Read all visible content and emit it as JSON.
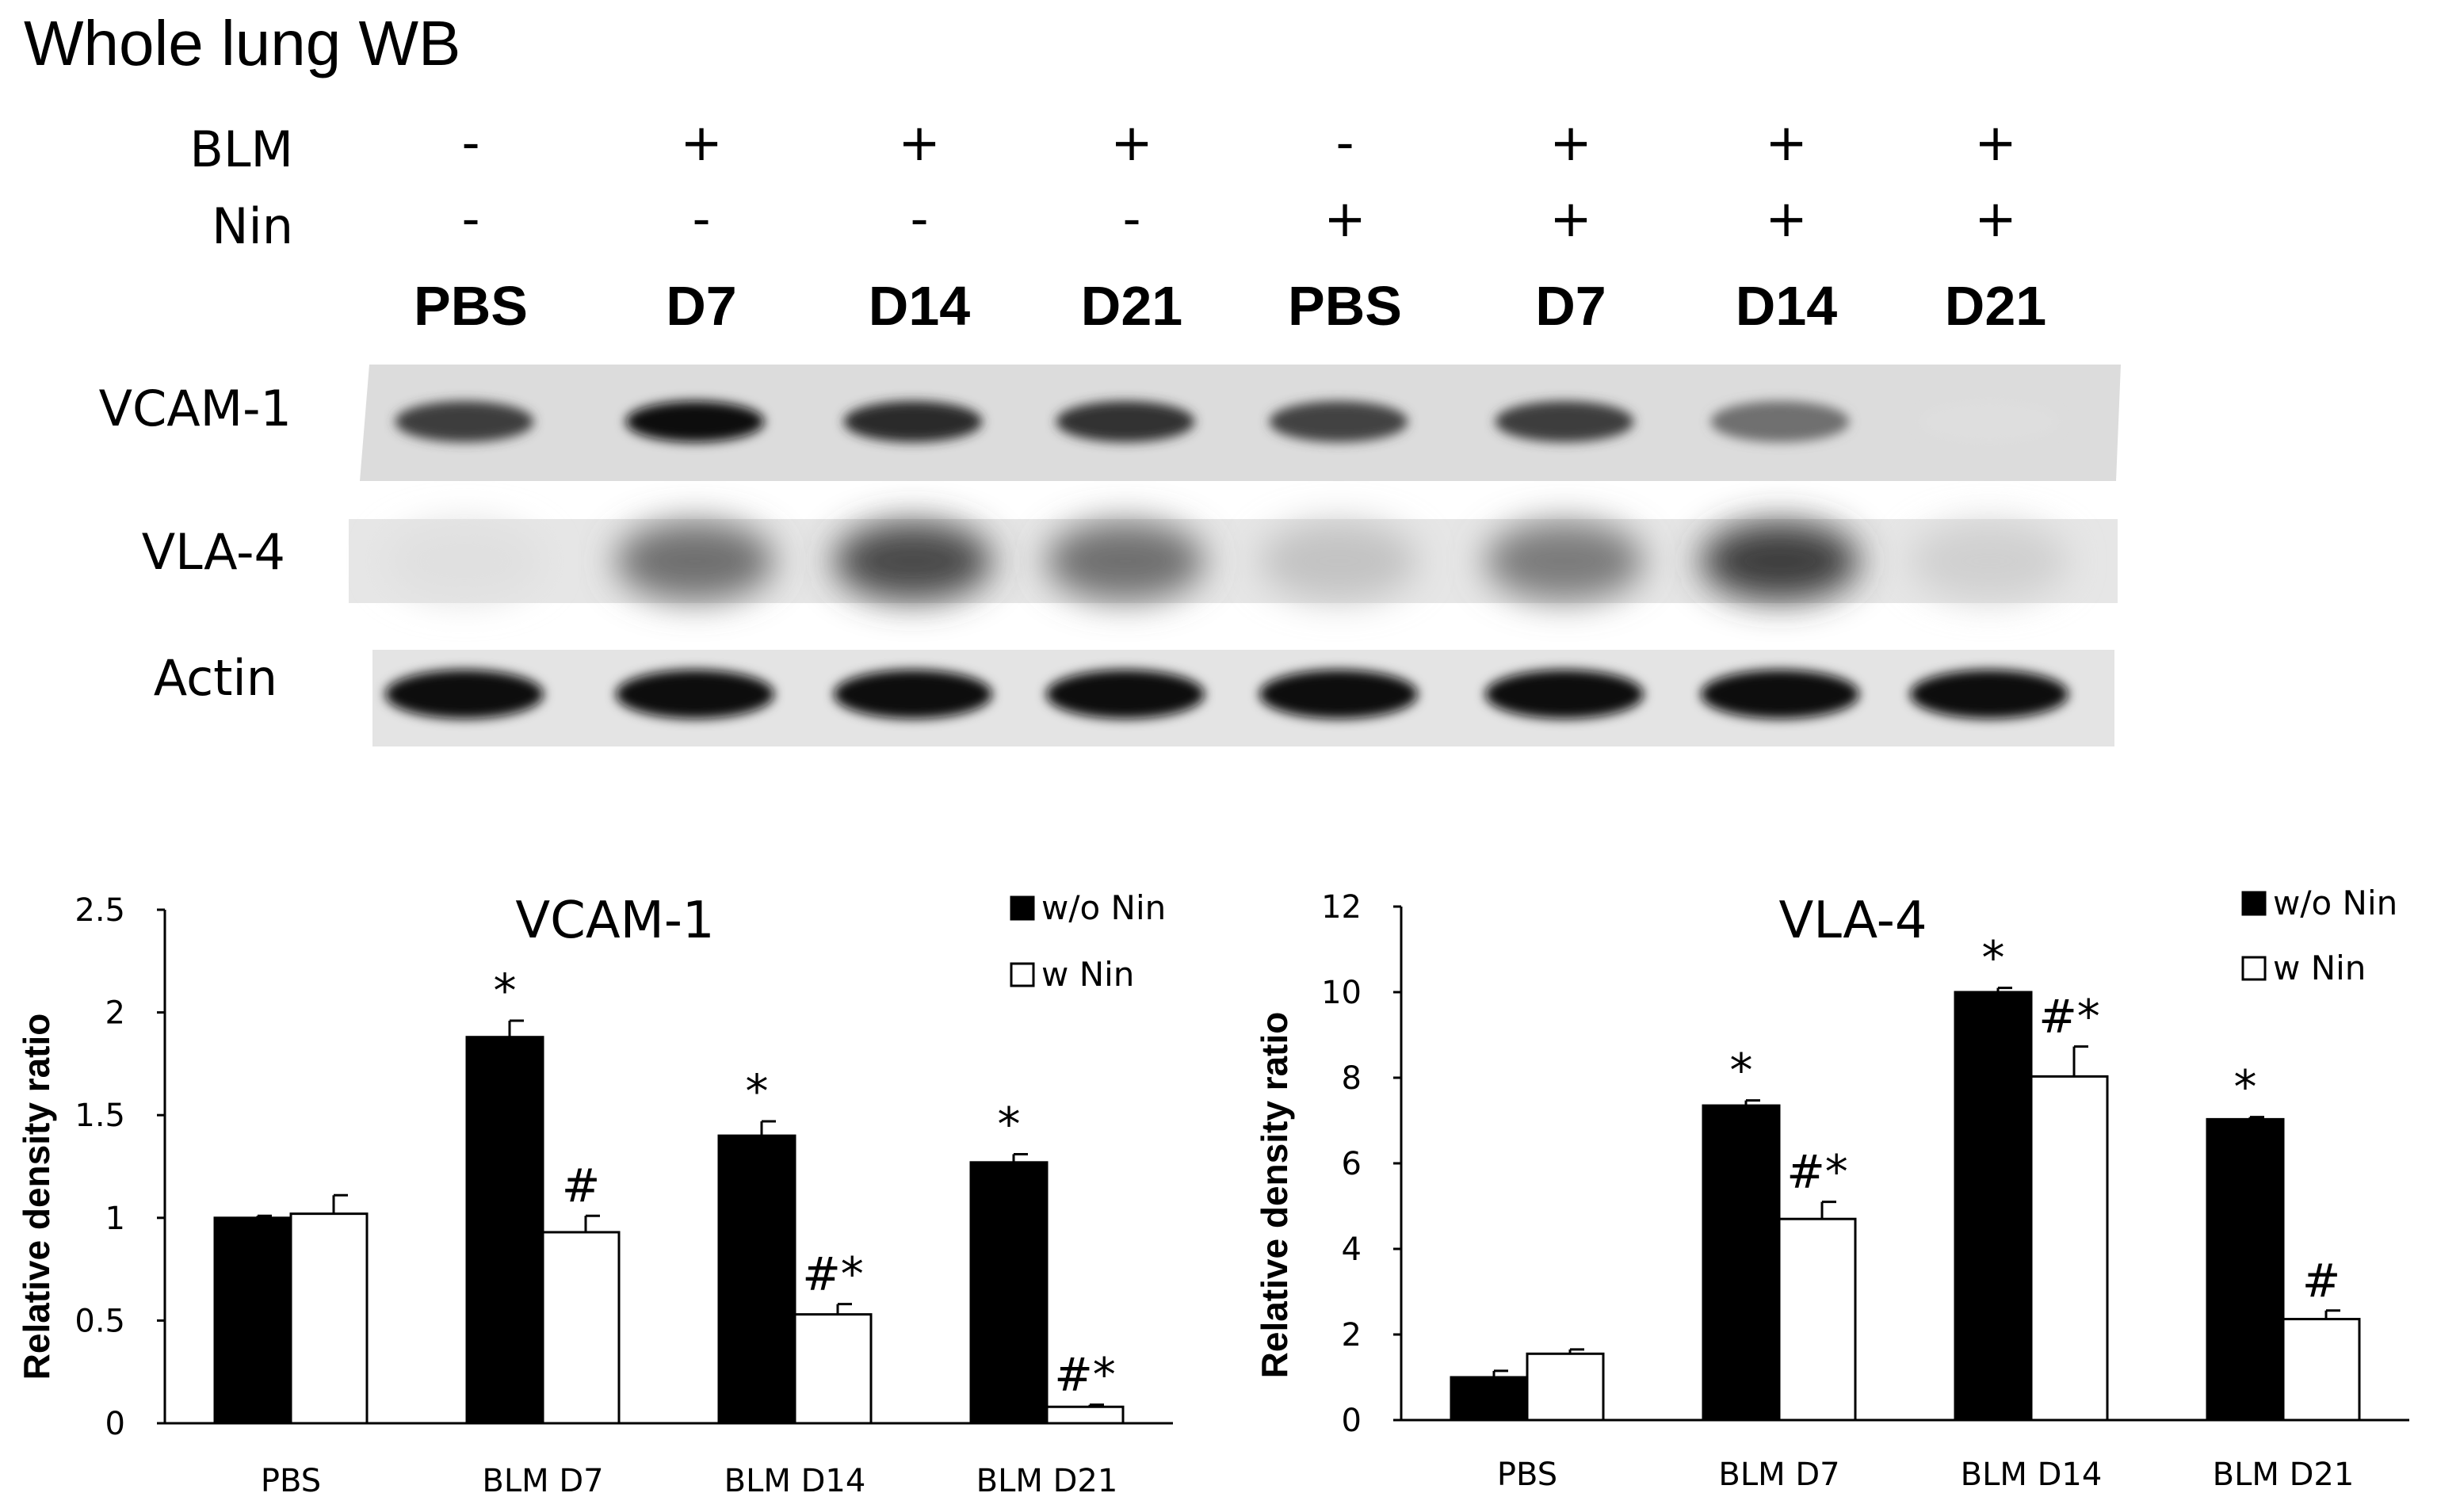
{
  "figure_title": "Whole lung WB",
  "blot": {
    "row_labels": {
      "blm": "BLM",
      "nin": "Nin"
    },
    "lanes": [
      {
        "blm": "-",
        "nin": "-",
        "name": "PBS"
      },
      {
        "blm": "+",
        "nin": "-",
        "name": "D7"
      },
      {
        "blm": "+",
        "nin": "-",
        "name": "D14"
      },
      {
        "blm": "+",
        "nin": "-",
        "name": "D21"
      },
      {
        "blm": "-",
        "nin": "+",
        "name": "PBS"
      },
      {
        "blm": "+",
        "nin": "+",
        "name": "D7"
      },
      {
        "blm": "+",
        "nin": "+",
        "name": "D14"
      },
      {
        "blm": "+",
        "nin": "+",
        "name": "D21"
      }
    ],
    "proteins": [
      "VCAM-1",
      "VLA-4",
      "Actin"
    ],
    "band_intensity": {
      "VCAM-1": [
        0.78,
        1.0,
        0.85,
        0.82,
        0.75,
        0.78,
        0.55,
        0.06
      ],
      "VLA-4": [
        0.05,
        0.55,
        0.72,
        0.55,
        0.18,
        0.5,
        0.78,
        0.12
      ],
      "Actin": [
        1.0,
        1.0,
        1.0,
        1.0,
        1.0,
        1.0,
        1.0,
        1.0
      ]
    }
  },
  "chart_data": [
    {
      "type": "bar",
      "title": "VCAM-1",
      "ylabel": "Relative density ratio",
      "xlabel": "",
      "categories": [
        "PBS",
        "BLM D7",
        "BLM D14",
        "BLM D21"
      ],
      "ylim": [
        0,
        2.5
      ],
      "yticks": [
        0,
        0.5,
        1,
        1.5,
        2,
        2.5
      ],
      "ytick_labels": [
        "0",
        "0.5",
        "1",
        "1.5",
        "2",
        "2.5"
      ],
      "legend_position": "top-right",
      "series": [
        {
          "name": "w/o Nin",
          "color": "#000000",
          "values": [
            1.0,
            1.88,
            1.4,
            1.27
          ],
          "errors": [
            0.01,
            0.08,
            0.07,
            0.04
          ],
          "annotations": [
            "",
            "*",
            "*",
            "*"
          ]
        },
        {
          "name": "w Nin",
          "color": "#ffffff",
          "values": [
            1.02,
            0.93,
            0.53,
            0.08
          ],
          "errors": [
            0.09,
            0.08,
            0.05,
            0.01
          ],
          "annotations": [
            "",
            "#",
            "#*",
            "#*"
          ]
        }
      ]
    },
    {
      "type": "bar",
      "title": "VLA-4",
      "ylabel": "Relative density ratio",
      "xlabel": "",
      "categories": [
        "PBS",
        "BLM D7",
        "BLM D14",
        "BLM D21"
      ],
      "ylim": [
        0,
        12
      ],
      "yticks": [
        0,
        2,
        4,
        6,
        8,
        10,
        12
      ],
      "ytick_labels": [
        "0",
        "2",
        "4",
        "6",
        "8",
        "10",
        "12"
      ],
      "legend_position": "top-right",
      "series": [
        {
          "name": "w/o Nin",
          "color": "#000000",
          "values": [
            1.0,
            7.35,
            10.0,
            7.03
          ],
          "errors": [
            0.15,
            0.12,
            0.1,
            0.05
          ],
          "annotations": [
            "",
            "*",
            "*",
            "*"
          ]
        },
        {
          "name": "w Nin",
          "color": "#ffffff",
          "values": [
            1.55,
            4.7,
            8.03,
            2.36
          ],
          "errors": [
            0.1,
            0.4,
            0.7,
            0.2
          ],
          "annotations": [
            "",
            "#*",
            "#*",
            "#"
          ]
        }
      ]
    }
  ]
}
